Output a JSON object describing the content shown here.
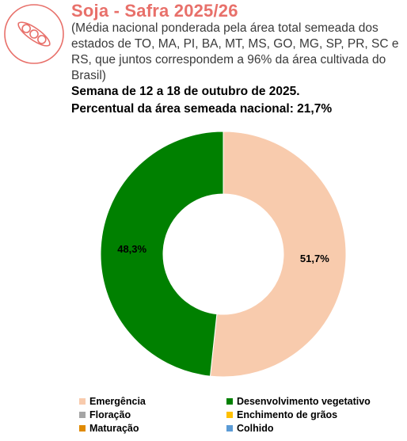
{
  "header": {
    "title": "Soja - Safra 2025/26",
    "subtitle": "(Média nacional ponderada pela área total semeada dos estados de TO, MA, PI, BA, MT, MS, GO, MG, SP, PR, SC e RS, que juntos correspondem a 96% da área cultivada do Brasil)",
    "week": "Semana de 12 a 18 de outubro de 2025.",
    "percent": "Percentual da área semeada nacional: 21,7%"
  },
  "logo": {
    "icon": "soybean-pod-icon",
    "color": "#e8706a"
  },
  "chart_data": {
    "type": "pie",
    "variant": "donut",
    "categories": [
      "Emergência",
      "Desenvolvimento vegetativo",
      "Floração",
      "Enchimento de grãos",
      "Maturação",
      "Colhido"
    ],
    "values": [
      51.7,
      48.3,
      0,
      0,
      0,
      0
    ],
    "value_labels": [
      "51,7%",
      "48,3%",
      "",
      "",
      "",
      ""
    ],
    "colors": [
      "#f8cbad",
      "#008000",
      "#a5a5a5",
      "#ffc000",
      "#e08a00",
      "#5b9bd5"
    ],
    "legend_position": "bottom"
  }
}
